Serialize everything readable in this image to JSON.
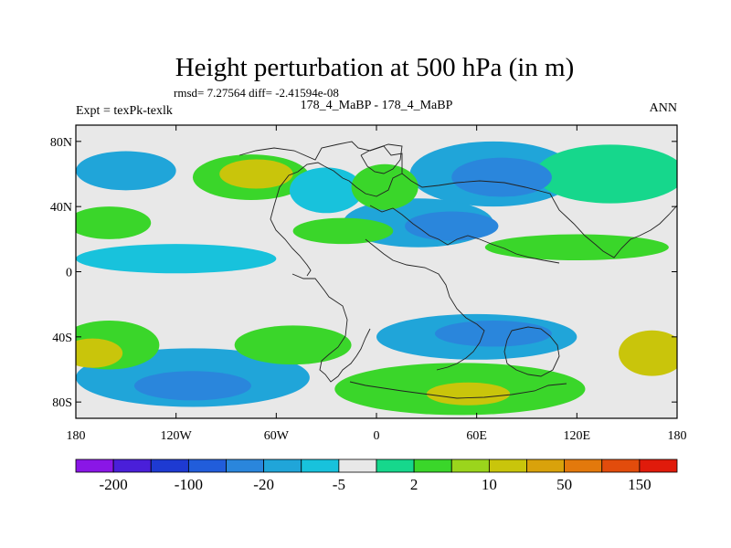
{
  "chart_data": {
    "type": "heatmap",
    "title": "Height perturbation at 500 hPa (in m)",
    "stats_line": "rmsd= 7.27564 diff= -2.41594e-08",
    "left_label": "Expt = texPk-texlk",
    "center_label": "178_4_MaBP - 178_4_MaBP",
    "right_label": "ANN",
    "projection": "cylindrical equidistant",
    "xlim": [
      -180,
      180
    ],
    "ylim": [
      -90,
      90
    ],
    "x_ticks": [
      {
        "value": -180,
        "label": "180"
      },
      {
        "value": -120,
        "label": "120W"
      },
      {
        "value": -60,
        "label": "60W"
      },
      {
        "value": 0,
        "label": "0"
      },
      {
        "value": 60,
        "label": "60E"
      },
      {
        "value": 120,
        "label": "120E"
      },
      {
        "value": 180,
        "label": "180"
      }
    ],
    "y_ticks": [
      {
        "value": 80,
        "label": "80N"
      },
      {
        "value": 40,
        "label": "40N"
      },
      {
        "value": 0,
        "label": "0"
      },
      {
        "value": -40,
        "label": "40S"
      },
      {
        "value": -80,
        "label": "80S"
      }
    ],
    "colorbar": {
      "colors": [
        "#8a16e6",
        "#4a1fd9",
        "#1e3ad2",
        "#215ddb",
        "#2a86dc",
        "#20a5d9",
        "#18c2dc",
        "#e8e8e8",
        "#16d78c",
        "#3ad62a",
        "#9bd51c",
        "#c9c50b",
        "#d9a20b",
        "#e3790c",
        "#e24c0c",
        "#e01b0b"
      ],
      "labels": [
        "-200",
        "-100",
        "-20",
        "-5",
        "2",
        "10",
        "50",
        "150"
      ]
    },
    "field_blobs": [
      {
        "lon": -150,
        "lat": 62,
        "rx": 30,
        "ry": 12,
        "value": -8
      },
      {
        "lon": -75,
        "lat": 58,
        "rx": 35,
        "ry": 14,
        "value": 6
      },
      {
        "lon": -72,
        "lat": 60,
        "rx": 22,
        "ry": 9,
        "value": 20
      },
      {
        "lon": -30,
        "lat": 50,
        "rx": 22,
        "ry": 14,
        "value": -4
      },
      {
        "lon": 5,
        "lat": 52,
        "rx": 20,
        "ry": 14,
        "value": 6
      },
      {
        "lon": 70,
        "lat": 60,
        "rx": 50,
        "ry": 20,
        "value": -7
      },
      {
        "lon": 75,
        "lat": 58,
        "rx": 30,
        "ry": 12,
        "value": -20
      },
      {
        "lon": 140,
        "lat": 60,
        "rx": 45,
        "ry": 18,
        "value": 4
      },
      {
        "lon": 25,
        "lat": 30,
        "rx": 45,
        "ry": 15,
        "value": -6
      },
      {
        "lon": 45,
        "lat": 28,
        "rx": 28,
        "ry": 9,
        "value": -20
      },
      {
        "lon": -20,
        "lat": 25,
        "rx": 30,
        "ry": 8,
        "value": 6
      },
      {
        "lon": -160,
        "lat": 30,
        "rx": 25,
        "ry": 10,
        "value": 5
      },
      {
        "lon": -120,
        "lat": 8,
        "rx": 60,
        "ry": 9,
        "value": -5
      },
      {
        "lon": 120,
        "lat": 15,
        "rx": 55,
        "ry": 8,
        "value": 5
      },
      {
        "lon": -50,
        "lat": -45,
        "rx": 35,
        "ry": 12,
        "value": 5
      },
      {
        "lon": -160,
        "lat": -45,
        "rx": 30,
        "ry": 15,
        "value": 6
      },
      {
        "lon": -170,
        "lat": -50,
        "rx": 18,
        "ry": 9,
        "value": 30
      },
      {
        "lon": 60,
        "lat": -40,
        "rx": 60,
        "ry": 14,
        "value": -8
      },
      {
        "lon": 70,
        "lat": -38,
        "rx": 35,
        "ry": 8,
        "value": -20
      },
      {
        "lon": 165,
        "lat": -50,
        "rx": 20,
        "ry": 14,
        "value": 25
      },
      {
        "lon": -110,
        "lat": -65,
        "rx": 70,
        "ry": 18,
        "value": -7
      },
      {
        "lon": -110,
        "lat": -70,
        "rx": 35,
        "ry": 9,
        "value": -20
      },
      {
        "lon": 50,
        "lat": -72,
        "rx": 75,
        "ry": 16,
        "value": 6
      },
      {
        "lon": 55,
        "lat": -75,
        "rx": 25,
        "ry": 7,
        "value": 20
      }
    ]
  }
}
